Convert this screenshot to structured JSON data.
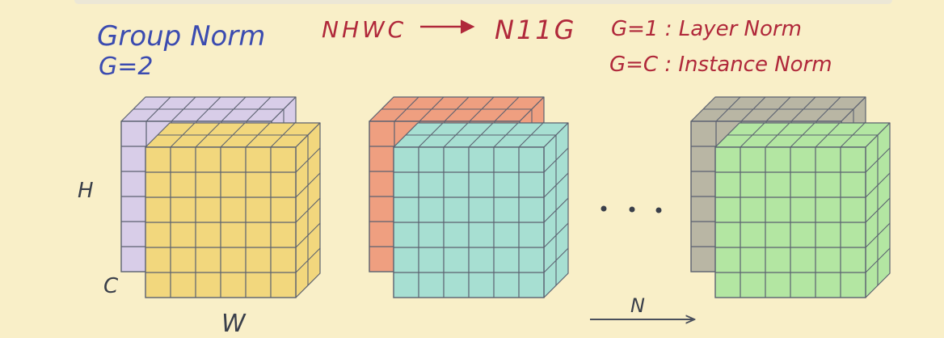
{
  "title": {
    "line1": "Group Norm",
    "line2": "G=2"
  },
  "formula": {
    "from": "NHWC",
    "to": "N11G"
  },
  "notes": {
    "g1": "G=1 : Layer Norm",
    "gc": "G=C : Instance Norm"
  },
  "axes": {
    "h": "H",
    "c": "C",
    "w": "W",
    "n": "N"
  },
  "ellipsis": "...",
  "colors": {
    "background": "#f9efc8",
    "blue_ink": "#3b4bb0",
    "red_ink": "#b0283a",
    "cube1_back": "#d8cde8",
    "cube1_front": "#f2d77d",
    "cube2_back": "#ef9f80",
    "cube2_front": "#a7dfd2",
    "cube3_back": "#b9b6a4",
    "cube3_front": "#b3e6a2",
    "grid_line": "#5b6170"
  }
}
